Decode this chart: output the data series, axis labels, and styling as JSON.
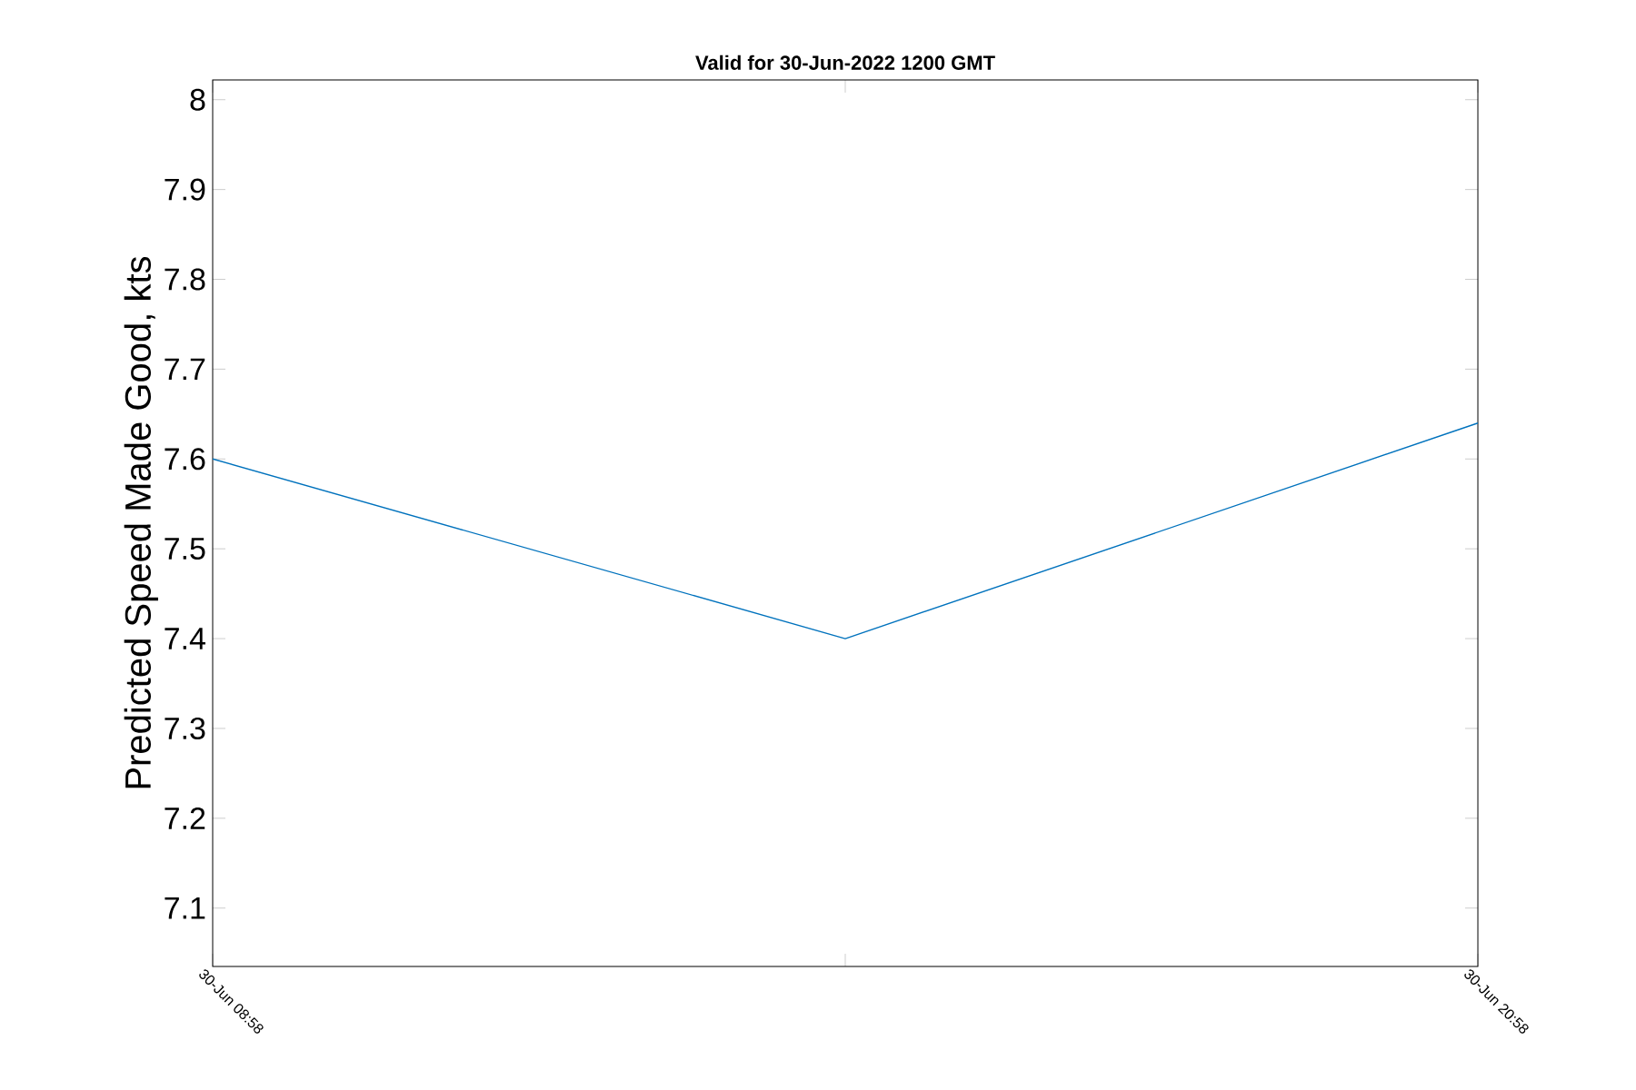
{
  "chart_data": {
    "type": "line",
    "title": "Valid for 30-Jun-2022 1200 GMT",
    "ylabel": "Predicted Speed Made Good, kts",
    "categories": [
      "30-Jun 08:58",
      null,
      "30-Jun 20:58"
    ],
    "series": [
      {
        "color": "#0072bd",
        "values": [
          7.6,
          7.4,
          7.64
        ]
      }
    ],
    "ylim": [
      7.035,
      8.022
    ],
    "yticks": [
      7.1,
      7.2,
      7.3,
      7.4,
      7.5,
      7.6,
      7.7,
      7.8,
      7.9,
      8
    ],
    "line_style": "solid"
  }
}
